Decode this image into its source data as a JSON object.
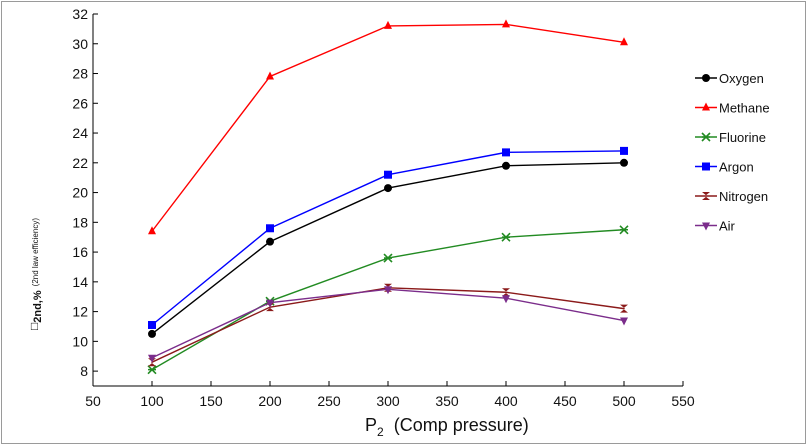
{
  "chart_data": {
    "type": "line",
    "x": [
      100,
      200,
      300,
      400,
      500
    ],
    "series": [
      {
        "name": "Oxygen",
        "color": "#000000",
        "marker": "circle",
        "values": [
          10.5,
          16.7,
          20.3,
          21.8,
          22.0
        ]
      },
      {
        "name": "Methane",
        "color": "#ff0000",
        "marker": "triangle-up",
        "values": [
          17.4,
          27.8,
          31.2,
          31.3,
          30.1
        ]
      },
      {
        "name": "Fluorine",
        "color": "#228b22",
        "marker": "star",
        "values": [
          8.1,
          12.7,
          15.6,
          17.0,
          17.5
        ]
      },
      {
        "name": "Argon",
        "color": "#0000ff",
        "marker": "square",
        "values": [
          11.1,
          17.6,
          21.2,
          22.7,
          22.8
        ]
      },
      {
        "name": "Nitrogen",
        "color": "#8b1a1a",
        "marker": "hourglass",
        "values": [
          8.6,
          12.3,
          13.6,
          13.3,
          12.2
        ]
      },
      {
        "name": "Air",
        "color": "#7b2d8b",
        "marker": "triangle-down",
        "values": [
          8.9,
          12.6,
          13.5,
          12.9,
          11.4
        ]
      }
    ],
    "xlim": [
      50,
      550
    ],
    "ylim": [
      7,
      32
    ],
    "xticks": [
      50,
      100,
      150,
      200,
      250,
      300,
      350,
      400,
      450,
      500,
      550
    ],
    "yticks": [
      8,
      10,
      12,
      14,
      16,
      18,
      20,
      22,
      24,
      26,
      28,
      30,
      32
    ],
    "xlabel_main": "P",
    "xlabel_sub": "2",
    "xlabel_rest": "  (Comp pressure)",
    "ylabel_box": "□",
    "ylabel_sub": "2nd,%",
    "ylabel_note": "(2nd law efficiency)",
    "grid": false,
    "legend_position": "right"
  }
}
